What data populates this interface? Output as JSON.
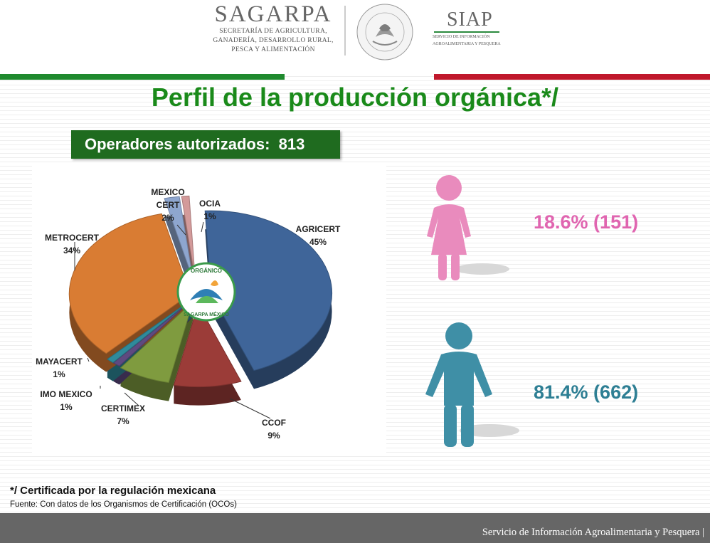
{
  "header": {
    "brand": "SAGARPA",
    "brand_lines": [
      "SECRETARÍA DE AGRICULTURA,",
      "GANADERÍA, DESARROLLO RURAL,",
      "PESCA Y ALIMENTACIÓN"
    ],
    "seal_text": "ESTADOS UNIDOS MEXICANOS",
    "siap": "SIAP",
    "siap_lines": [
      "SERVICIO DE INFORMACIÓN",
      "AGROALIMENTARIA Y PESQUERA"
    ]
  },
  "title": "Perfil de la producción orgánica*/",
  "badge": {
    "label": "Operadores autorizados:",
    "value": "813"
  },
  "logo": {
    "top": "ORGÁNICO",
    "bottom": "SAGARPA MÉXICO"
  },
  "chart_data": {
    "type": "pie",
    "title": "",
    "slices": [
      {
        "name": "AGRICERT",
        "pct_label": "45%",
        "value": 45,
        "color": "#3f6599"
      },
      {
        "name": "CCOF",
        "pct_label": "9%",
        "value": 9,
        "color": "#9b3c38"
      },
      {
        "name": "CERTIMEX",
        "pct_label": "7%",
        "value": 7,
        "color": "#7f9b3f"
      },
      {
        "name": "IMO MEXICO",
        "pct_label": "1%",
        "value": 1,
        "color": "#5e4a80"
      },
      {
        "name": "MAYACERT",
        "pct_label": "1%",
        "value": 1,
        "color": "#2f8a9b"
      },
      {
        "name": "METROCERT",
        "pct_label": "34%",
        "value": 34,
        "color": "#d97c33"
      },
      {
        "name": "MEXICO CERT",
        "pct_label": "2%",
        "value": 2,
        "color": "#8ea6cf"
      },
      {
        "name": "OCIA",
        "pct_label": "1%",
        "value": 1,
        "color": "#d39a9a"
      }
    ]
  },
  "gender": {
    "female": {
      "text": "18.6% (151)",
      "percent": 18.6,
      "count": 151,
      "color": "#e065b0"
    },
    "male": {
      "text": "81.4% (662)",
      "percent": 81.4,
      "count": 662,
      "color": "#2e7f94"
    }
  },
  "footnote": "*/ Certificada por la regulación mexicana",
  "source": "Fuente: Con datos de los Organismos de Certificación (OCOs)",
  "footer": "Servicio de Información Agroalimentaria y Pesquera |"
}
